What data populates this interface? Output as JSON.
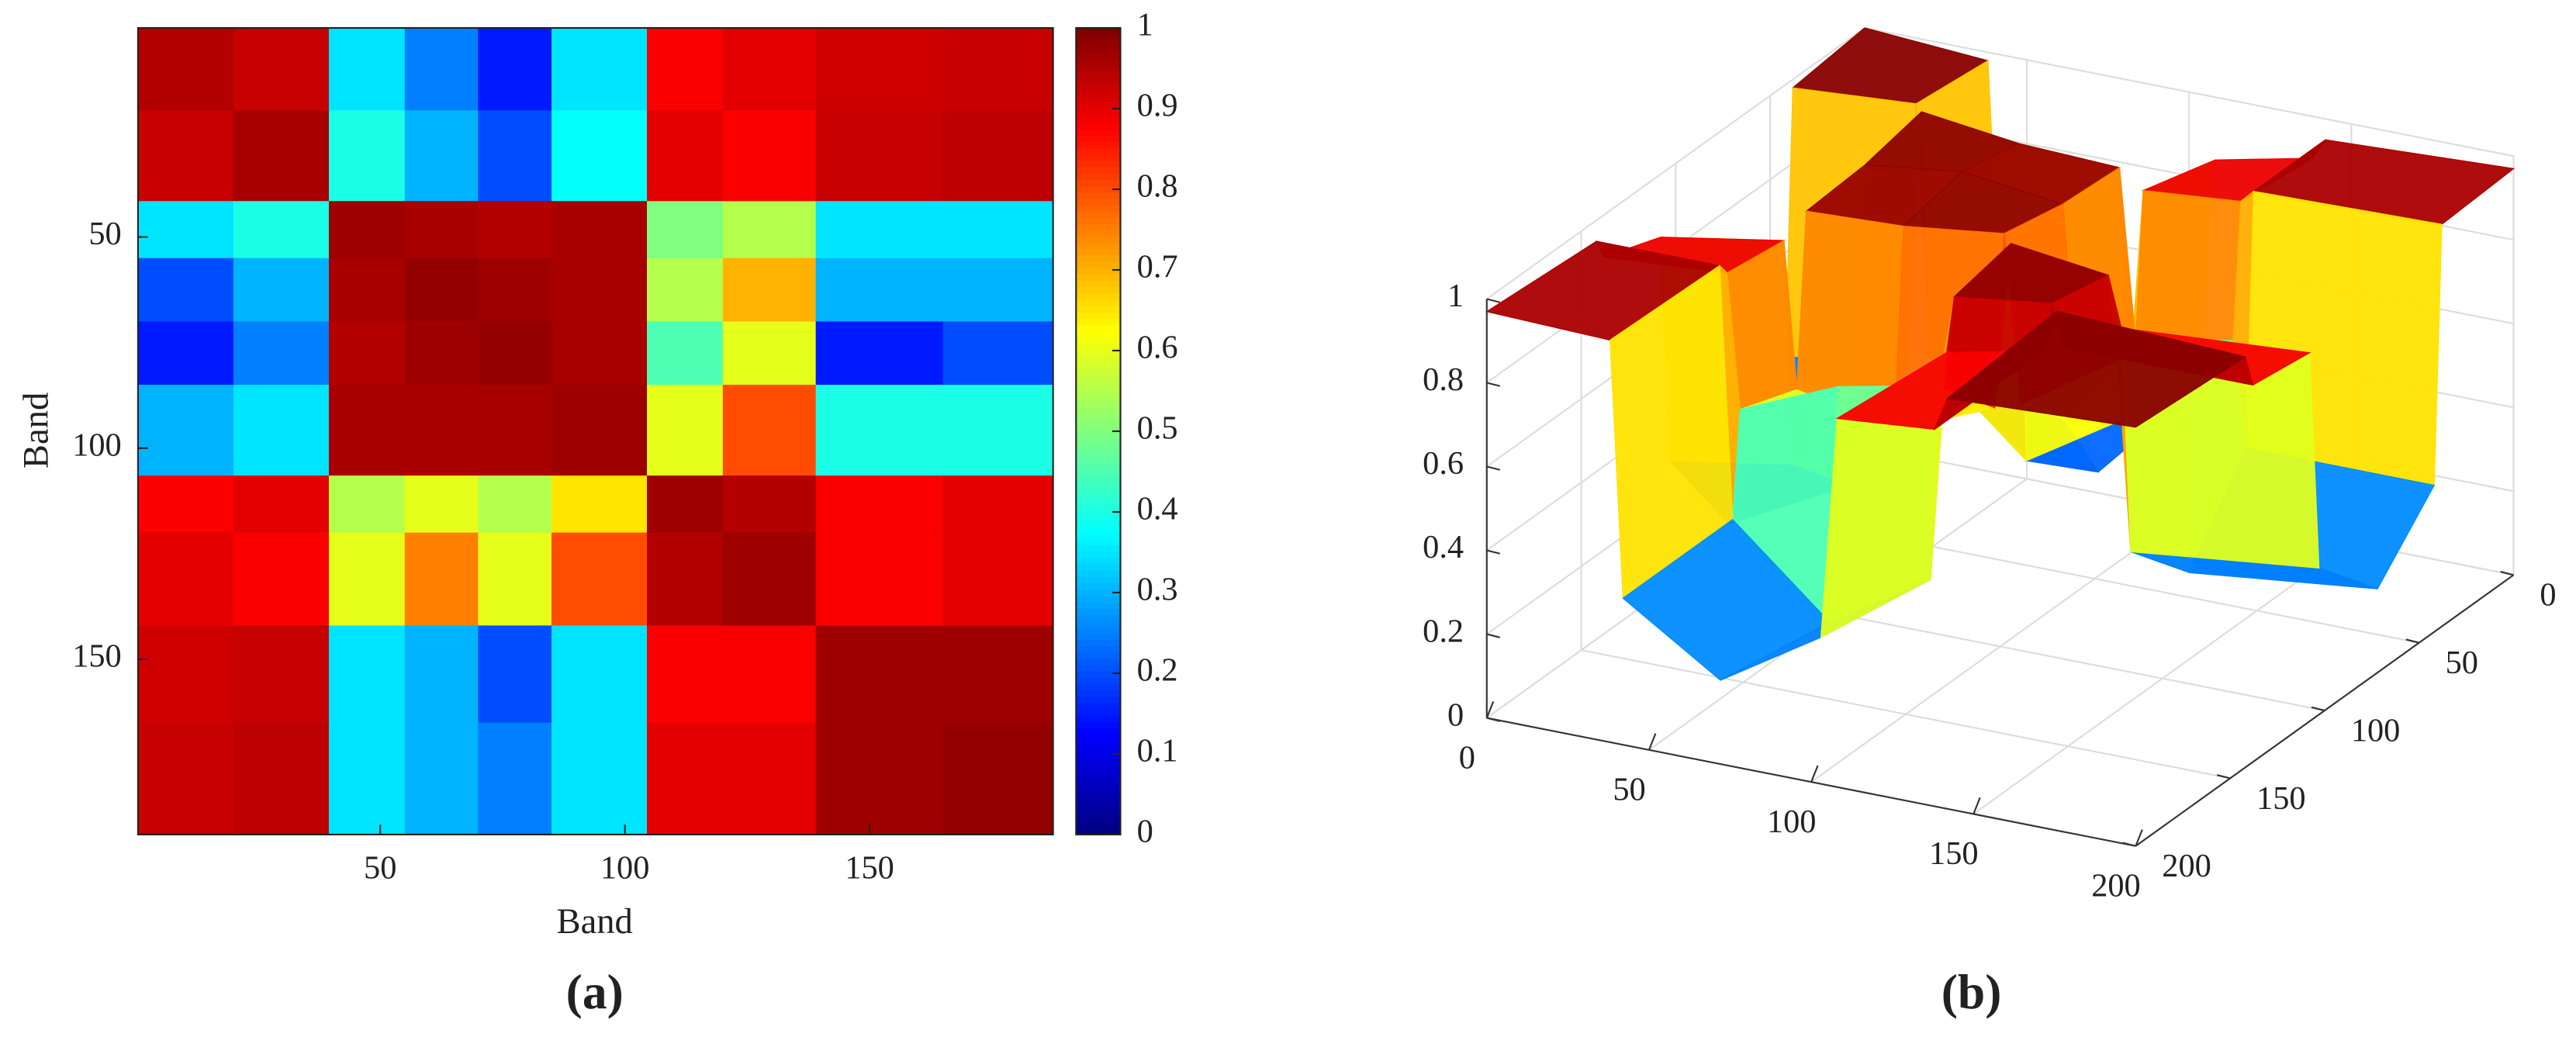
{
  "chart_data": [
    {
      "type": "heatmap",
      "panel_label": "(a)",
      "xlabel": "Band",
      "ylabel": "Band",
      "colormap": "jet",
      "x_edges": [
        0.5,
        20,
        39.5,
        55,
        70,
        85,
        104.5,
        120,
        139,
        165,
        187.5
      ],
      "y_edges": [
        0.5,
        20,
        41.5,
        55,
        70,
        85,
        106.5,
        120,
        142,
        165,
        191.5
      ],
      "values": [
        [
          0.95,
          0.93,
          0.35,
          0.25,
          0.15,
          0.35,
          0.88,
          0.9,
          0.92,
          0.93
        ],
        [
          0.93,
          0.96,
          0.4,
          0.3,
          0.2,
          0.38,
          0.9,
          0.88,
          0.93,
          0.94
        ],
        [
          0.35,
          0.4,
          0.97,
          0.96,
          0.95,
          0.96,
          0.5,
          0.55,
          0.35,
          0.35
        ],
        [
          0.2,
          0.3,
          0.96,
          0.98,
          0.97,
          0.96,
          0.55,
          0.7,
          0.3,
          0.3
        ],
        [
          0.15,
          0.25,
          0.95,
          0.97,
          0.98,
          0.96,
          0.45,
          0.6,
          0.15,
          0.2
        ],
        [
          0.3,
          0.35,
          0.96,
          0.96,
          0.96,
          0.97,
          0.6,
          0.8,
          0.4,
          0.4
        ],
        [
          0.88,
          0.9,
          0.55,
          0.6,
          0.55,
          0.65,
          0.97,
          0.95,
          0.88,
          0.9
        ],
        [
          0.9,
          0.88,
          0.6,
          0.75,
          0.6,
          0.8,
          0.95,
          0.97,
          0.88,
          0.9
        ],
        [
          0.92,
          0.93,
          0.35,
          0.3,
          0.2,
          0.35,
          0.88,
          0.88,
          0.97,
          0.97
        ],
        [
          0.93,
          0.94,
          0.35,
          0.3,
          0.25,
          0.35,
          0.9,
          0.9,
          0.97,
          0.98
        ]
      ],
      "xlim": [
        0.5,
        187.5
      ],
      "ylim": [
        0.5,
        191.5
      ],
      "xticks": [
        50,
        100,
        150
      ],
      "yticks": [
        50,
        100,
        150
      ],
      "clim": [
        0,
        1
      ],
      "colorbar_ticks": [
        0,
        0.1,
        0.2,
        0.3,
        0.4,
        0.5,
        0.6,
        0.7,
        0.8,
        0.9,
        1
      ]
    },
    {
      "type": "surface",
      "panel_label": "(b)",
      "colormap": "jet",
      "grid": true,
      "x": [
        0,
        38,
        42,
        72,
        103,
        108,
        138,
        142,
        200
      ],
      "y": [
        0,
        38,
        42,
        72,
        103,
        108,
        138,
        142,
        200
      ],
      "z": [
        [
          1,
          0.98,
          0.35,
          0.05,
          0.3,
          0.85,
          0.9,
          0.95,
          0.97
        ],
        [
          0.98,
          1,
          0.4,
          0.2,
          0.35,
          0.9,
          0.92,
          0.95,
          0.96
        ],
        [
          0.35,
          0.4,
          1,
          0.97,
          0.96,
          0.55,
          0.6,
          0.35,
          0.35
        ],
        [
          0.05,
          0.2,
          0.97,
          1,
          0.97,
          0.5,
          0.7,
          0.15,
          0.2
        ],
        [
          0.3,
          0.35,
          0.96,
          0.97,
          1,
          0.6,
          0.75,
          0.3,
          0.35
        ],
        [
          0.85,
          0.9,
          0.55,
          0.5,
          0.6,
          1,
          0.97,
          0.85,
          0.88
        ],
        [
          0.9,
          0.92,
          0.6,
          0.7,
          0.75,
          0.97,
          1,
          0.9,
          0.9
        ],
        [
          0.95,
          0.95,
          0.35,
          0.15,
          0.3,
          0.85,
          0.9,
          1,
          0.98
        ],
        [
          0.97,
          0.96,
          0.35,
          0.2,
          0.35,
          0.88,
          0.9,
          0.98,
          1
        ]
      ],
      "xlim": [
        0,
        200
      ],
      "ylim": [
        0,
        200
      ],
      "zlim": [
        0,
        1
      ],
      "xticks": [
        0,
        50,
        100,
        150,
        200
      ],
      "yticks": [
        0,
        50,
        100,
        150,
        200
      ],
      "zticks": [
        0,
        0.2,
        0.4,
        0.6,
        0.8,
        1
      ]
    }
  ]
}
